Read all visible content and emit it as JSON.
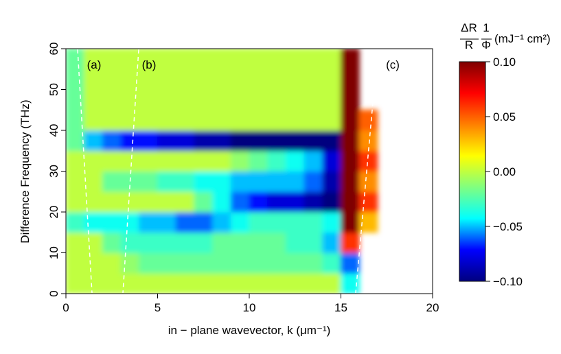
{
  "chart_data": {
    "type": "heatmap",
    "xlabel": "in − plane wavevector,  k (μm⁻¹)",
    "ylabel": "Difference Frequency (THz)",
    "colorbar_label": {
      "numerator": "ΔR",
      "denominator": "R",
      "numerator2": "1",
      "denominator2": "Φ",
      "units": "(mJ⁻¹ cm²)"
    },
    "annotations": [
      "(a)",
      "(b)",
      "(c)"
    ],
    "x": [
      0.5,
      1.5,
      2.5,
      3.5,
      4.5,
      5.5,
      6.5,
      7.5,
      8.5,
      9.5,
      10.5,
      11.5,
      12.5,
      13.5,
      14.5,
      15.5,
      16.5
    ],
    "y": [
      2.5,
      7.5,
      12.5,
      17.5,
      22.5,
      27.5,
      32.5,
      37.5,
      42.5,
      47.5,
      52.5,
      57.5
    ],
    "z": [
      [
        0,
        0,
        0,
        0,
        0,
        0,
        0,
        0,
        0,
        0,
        0,
        0,
        0,
        0,
        0,
        -0.04,
        null
      ],
      [
        0,
        0,
        0,
        -0.01,
        -0.02,
        -0.02,
        -0.02,
        -0.02,
        -0.02,
        -0.02,
        -0.02,
        -0.02,
        -0.02,
        -0.02,
        -0.03,
        -0.06,
        null
      ],
      [
        0,
        0,
        -0.02,
        -0.03,
        -0.03,
        -0.03,
        -0.03,
        -0.03,
        -0.02,
        -0.02,
        -0.02,
        -0.02,
        -0.03,
        -0.03,
        -0.05,
        0.06,
        null
      ],
      [
        -0.03,
        -0.04,
        -0.04,
        -0.04,
        -0.05,
        -0.05,
        -0.06,
        -0.06,
        -0.05,
        -0.04,
        -0.03,
        -0.03,
        -0.03,
        -0.03,
        -0.04,
        0.1,
        0.03
      ],
      [
        0,
        0,
        0,
        0,
        0,
        0,
        0,
        -0.02,
        -0.04,
        -0.06,
        -0.07,
        -0.08,
        -0.08,
        -0.09,
        -0.1,
        0.1,
        0.06
      ],
      [
        0,
        0,
        -0.02,
        -0.02,
        -0.02,
        -0.03,
        -0.03,
        -0.04,
        -0.04,
        -0.05,
        -0.05,
        -0.05,
        -0.05,
        -0.06,
        -0.09,
        0.1,
        0.04
      ],
      [
        0,
        0,
        0,
        0,
        0,
        0,
        0,
        0,
        0,
        -0.01,
        -0.02,
        -0.03,
        -0.04,
        -0.05,
        -0.08,
        0.1,
        0.06
      ],
      [
        -0.02,
        -0.05,
        -0.06,
        -0.07,
        -0.07,
        -0.08,
        -0.08,
        -0.09,
        -0.09,
        -0.1,
        -0.1,
        -0.1,
        -0.1,
        -0.1,
        -0.1,
        0.1,
        0.04
      ],
      [
        -0.02,
        0,
        0,
        0,
        0,
        0,
        0,
        0,
        0,
        0,
        0,
        0,
        0,
        0,
        0,
        0.1,
        0.05
      ],
      [
        -0.02,
        0,
        0,
        0,
        0,
        0,
        0,
        0,
        0,
        0,
        0,
        0,
        0,
        0,
        0,
        0.1,
        null
      ],
      [
        -0.02,
        0,
        0,
        0,
        0,
        0,
        0,
        0,
        0,
        0,
        0,
        0,
        0,
        0,
        0,
        0.1,
        null
      ],
      [
        -0.02,
        0,
        0,
        0,
        0,
        0,
        0,
        0,
        0,
        0,
        0,
        0,
        0,
        0,
        0,
        0.1,
        null
      ]
    ],
    "xlim": [
      0,
      20
    ],
    "xticks": [
      0,
      5,
      10,
      15,
      20
    ],
    "ylim": [
      0,
      60
    ],
    "yticks": [
      0,
      10,
      20,
      30,
      40,
      50,
      60
    ],
    "zlim": [
      -0.1,
      0.1
    ],
    "zticks": [
      {
        "value": 0.1,
        "label": "0.10"
      },
      {
        "value": 0.05,
        "label": "0.05"
      },
      {
        "value": 0,
        "label": "0.00"
      },
      {
        "value": -0.05,
        "label": "−0.05"
      },
      {
        "value": -0.1,
        "label": "−0.10"
      }
    ],
    "colormap": [
      "#00007f",
      "#0000ff",
      "#00ffff",
      "#80ff80",
      "#ffff00",
      "#ff8000",
      "#ff0000",
      "#7f0000"
    ]
  }
}
